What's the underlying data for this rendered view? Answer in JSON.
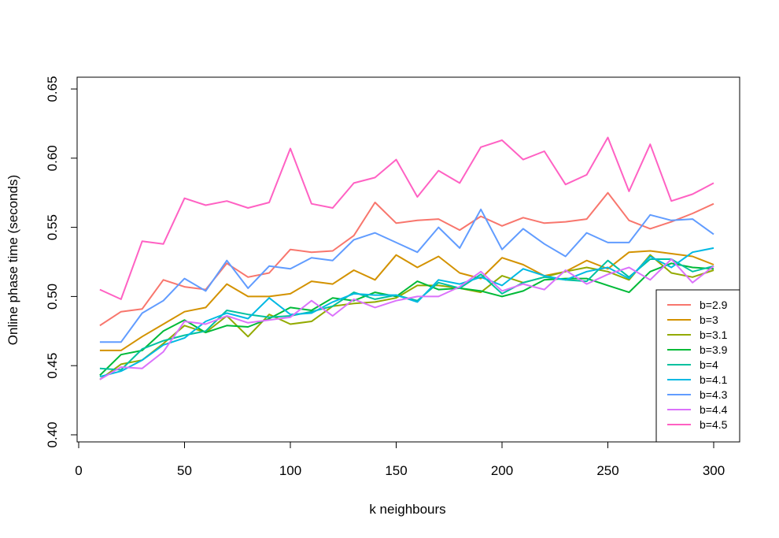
{
  "chart_data": {
    "type": "line",
    "title": "",
    "xlabel": "k neighbours",
    "ylabel": "Online phase time (seconds)",
    "xlim": [
      0,
      310
    ],
    "ylim": [
      0.4,
      0.65
    ],
    "xticks": [
      0,
      50,
      100,
      150,
      200,
      250,
      300
    ],
    "yticks": [
      0.4,
      0.45,
      0.5,
      0.55,
      0.6,
      0.65
    ],
    "xtick_labels": [
      "0",
      "50",
      "100",
      "150",
      "200",
      "250",
      "300"
    ],
    "ytick_labels": [
      "0.40",
      "0.45",
      "0.50",
      "0.55",
      "0.60",
      "0.65"
    ],
    "grid": false,
    "legend_position": "bottom-right",
    "x": [
      10,
      20,
      30,
      40,
      50,
      60,
      70,
      80,
      90,
      100,
      110,
      120,
      130,
      140,
      150,
      160,
      170,
      180,
      190,
      200,
      210,
      220,
      230,
      240,
      250,
      260,
      270,
      280,
      290,
      300
    ],
    "series": [
      {
        "name": "b=2.9",
        "color": "#F8766D",
        "values": [
          0.479,
          0.489,
          0.491,
          0.512,
          0.507,
          0.505,
          0.524,
          0.514,
          0.517,
          0.534,
          0.532,
          0.533,
          0.544,
          0.568,
          0.553,
          0.555,
          0.556,
          0.548,
          0.558,
          0.551,
          0.557,
          0.553,
          0.554,
          0.556,
          0.575,
          0.555,
          0.549,
          0.554,
          0.56,
          0.567
        ]
      },
      {
        "name": "b=3",
        "color": "#D39200",
        "values": [
          0.461,
          0.461,
          0.471,
          0.48,
          0.489,
          0.492,
          0.509,
          0.5,
          0.5,
          0.502,
          0.511,
          0.509,
          0.519,
          0.512,
          0.53,
          0.521,
          0.529,
          0.517,
          0.513,
          0.528,
          0.523,
          0.515,
          0.518,
          0.526,
          0.52,
          0.532,
          0.533,
          0.531,
          0.529,
          0.523
        ]
      },
      {
        "name": "b=3.1",
        "color": "#93AA00",
        "values": [
          0.44,
          0.451,
          0.454,
          0.466,
          0.479,
          0.474,
          0.486,
          0.471,
          0.487,
          0.48,
          0.482,
          0.493,
          0.495,
          0.496,
          0.499,
          0.508,
          0.508,
          0.506,
          0.503,
          0.515,
          0.51,
          0.514,
          0.518,
          0.521,
          0.518,
          0.512,
          0.53,
          0.517,
          0.514,
          0.519
        ]
      },
      {
        "name": "b=3.9",
        "color": "#00BA38",
        "values": [
          0.443,
          0.458,
          0.461,
          0.475,
          0.483,
          0.474,
          0.479,
          0.478,
          0.484,
          0.492,
          0.49,
          0.499,
          0.497,
          0.503,
          0.5,
          0.511,
          0.505,
          0.506,
          0.504,
          0.5,
          0.504,
          0.512,
          0.513,
          0.513,
          0.508,
          0.503,
          0.518,
          0.524,
          0.521,
          0.52
        ]
      },
      {
        "name": "b=4",
        "color": "#00C19F",
        "values": [
          0.448,
          0.447,
          0.462,
          0.468,
          0.472,
          0.475,
          0.49,
          0.487,
          0.485,
          0.486,
          0.489,
          0.493,
          0.503,
          0.498,
          0.501,
          0.497,
          0.51,
          0.506,
          0.516,
          0.502,
          0.51,
          0.514,
          0.512,
          0.511,
          0.526,
          0.514,
          0.527,
          0.527,
          0.518,
          0.522
        ]
      },
      {
        "name": "b=4.1",
        "color": "#00B9E3",
        "values": [
          0.442,
          0.446,
          0.454,
          0.465,
          0.47,
          0.482,
          0.488,
          0.484,
          0.499,
          0.487,
          0.488,
          0.496,
          0.502,
          0.501,
          0.501,
          0.496,
          0.512,
          0.509,
          0.514,
          0.508,
          0.52,
          0.515,
          0.512,
          0.518,
          0.521,
          0.513,
          0.529,
          0.521,
          0.532,
          0.535
        ]
      },
      {
        "name": "b=4.3",
        "color": "#619CFF",
        "values": [
          0.467,
          0.467,
          0.488,
          0.497,
          0.513,
          0.504,
          0.526,
          0.506,
          0.522,
          0.52,
          0.528,
          0.526,
          0.541,
          0.546,
          0.539,
          0.532,
          0.55,
          0.535,
          0.563,
          0.534,
          0.549,
          0.538,
          0.529,
          0.546,
          0.539,
          0.539,
          0.559,
          0.555,
          0.556,
          0.545
        ]
      },
      {
        "name": "b=4.4",
        "color": "#DB72FB",
        "values": [
          0.44,
          0.449,
          0.448,
          0.46,
          0.482,
          0.48,
          0.486,
          0.481,
          0.483,
          0.485,
          0.497,
          0.486,
          0.498,
          0.492,
          0.497,
          0.5,
          0.5,
          0.507,
          0.518,
          0.504,
          0.509,
          0.505,
          0.519,
          0.509,
          0.516,
          0.521,
          0.512,
          0.527,
          0.51,
          0.522
        ]
      },
      {
        "name": "b=4.5",
        "color": "#FF61C3",
        "values": [
          0.505,
          0.498,
          0.54,
          0.538,
          0.571,
          0.566,
          0.569,
          0.564,
          0.568,
          0.607,
          0.567,
          0.564,
          0.582,
          0.586,
          0.599,
          0.572,
          0.591,
          0.582,
          0.608,
          0.613,
          0.599,
          0.605,
          0.581,
          0.588,
          0.615,
          0.576,
          0.61,
          0.569,
          0.574,
          0.582
        ]
      }
    ]
  }
}
